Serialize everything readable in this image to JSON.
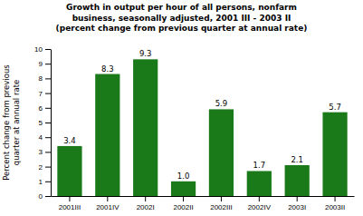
{
  "chart_data": {
    "type": "bar",
    "title": "Growth in output per hour of all persons, nonfarm\nbusiness, seasonally adjusted, 2001 III - 2003 II\n(percent change from previous quarter at annual rate)",
    "ylabel": "Percent change from previous\nquarter at annual rate",
    "categories": [
      "2001III",
      "2001IV",
      "2002I",
      "2002II",
      "2002III",
      "2002IV",
      "2003I",
      "2003II"
    ],
    "values": [
      3.4,
      8.3,
      9.3,
      1.0,
      5.9,
      1.7,
      2.1,
      5.7
    ],
    "value_labels": [
      "3.4",
      "8.3",
      "9.3",
      "1.0",
      "5.9",
      "1.7",
      "2.1",
      "5.7"
    ],
    "color": "#1a7a1a",
    "ylim": [
      0,
      10
    ],
    "yticks": [
      0,
      1,
      2,
      3,
      4,
      5,
      6,
      7,
      8,
      9,
      10
    ],
    "grid": false,
    "data_labels": true
  }
}
